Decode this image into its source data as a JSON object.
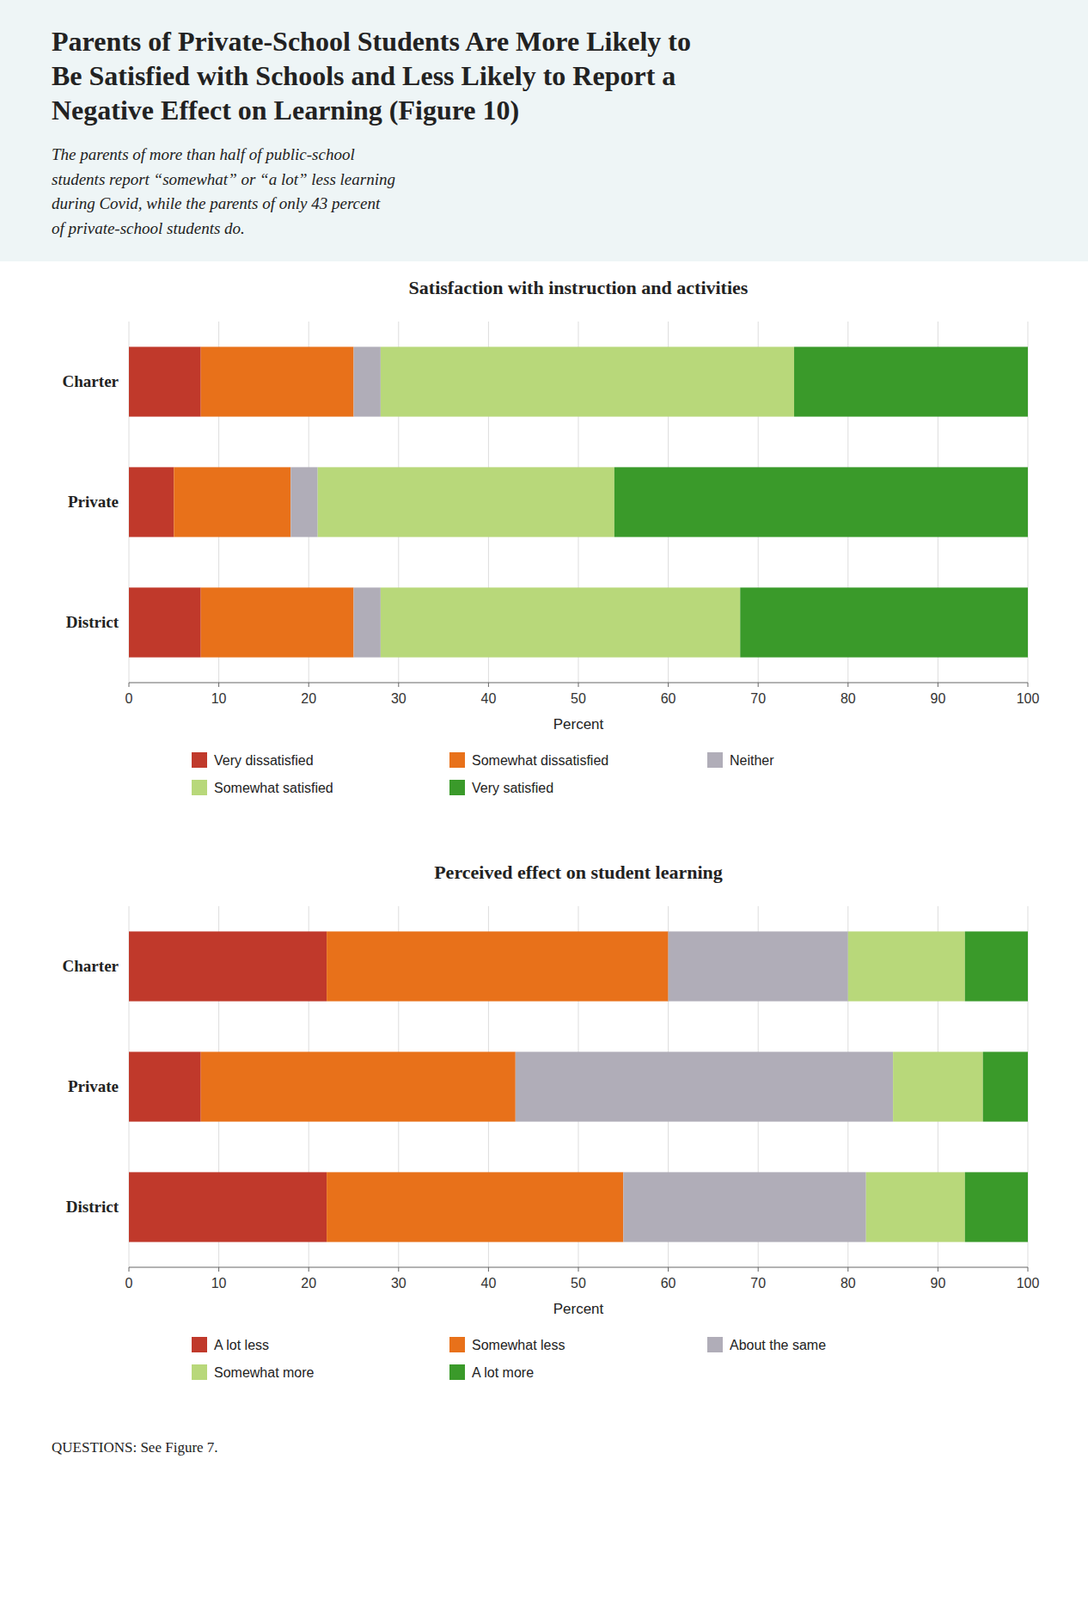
{
  "title": "Parents of Private-School Students Are More Likely to Be Satisfied with Schools and Less Likely to Report a Negative Effect on Learning (Figure 10)",
  "subtitle": "The parents of more than half of public-school\nstudents report “somewhat” or “a lot” less learning\nduring Covid, while the parents of only 43 percent\nof private-school students do.",
  "annotations": [
    "QUESTIONS: See Figure 7."
  ],
  "chart_data": [
    {
      "type": "bar",
      "orientation": "horizontal",
      "stacked": true,
      "title": "Satisfaction with instruction and activities",
      "categories": [
        "Charter",
        "Private",
        "District"
      ],
      "series": [
        {
          "name": "Very dissatisfied",
          "color": "#c0392b",
          "values": [
            8,
            5,
            8
          ]
        },
        {
          "name": "Somewhat dissatisfied",
          "color": "#e8711a",
          "values": [
            17,
            13,
            17
          ]
        },
        {
          "name": "Neither",
          "color": "#b0adb8",
          "values": [
            3,
            3,
            3
          ]
        },
        {
          "name": "Somewhat satisfied",
          "color": "#b8d87a",
          "values": [
            46,
            33,
            40
          ]
        },
        {
          "name": "Very satisfied",
          "color": "#3a9a2a",
          "values": [
            26,
            46,
            32
          ]
        }
      ],
      "xlabel": "Percent",
      "xlim": [
        0,
        100
      ],
      "xticks": [
        0,
        10,
        20,
        30,
        40,
        50,
        60,
        70,
        80,
        90,
        100
      ],
      "grid": true,
      "legend": "bottom"
    },
    {
      "type": "bar",
      "orientation": "horizontal",
      "stacked": true,
      "title": "Perceived effect on student learning",
      "categories": [
        "Charter",
        "Private",
        "District"
      ],
      "series": [
        {
          "name": "A lot less",
          "color": "#c0392b",
          "values": [
            22,
            8,
            22
          ]
        },
        {
          "name": "Somewhat less",
          "color": "#e8711a",
          "values": [
            38,
            35,
            33
          ]
        },
        {
          "name": "About the same",
          "color": "#b0adb8",
          "values": [
            20,
            42,
            27
          ]
        },
        {
          "name": "Somewhat more",
          "color": "#b8d87a",
          "values": [
            13,
            10,
            11
          ]
        },
        {
          "name": "A lot more",
          "color": "#3a9a2a",
          "values": [
            7,
            5,
            7
          ]
        }
      ],
      "xlabel": "Percent",
      "xlim": [
        0,
        100
      ],
      "xticks": [
        0,
        10,
        20,
        30,
        40,
        50,
        60,
        70,
        80,
        90,
        100
      ],
      "grid": true,
      "legend": "bottom"
    }
  ]
}
